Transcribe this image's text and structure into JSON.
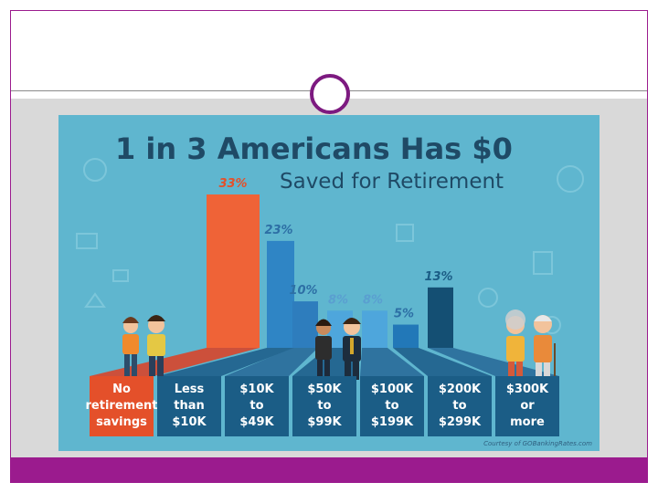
{
  "infographic": {
    "headline": "1 in 3 Americans Has $0",
    "subhead": "Saved for Retirement",
    "credit": "Courtesy of GOBankingRates.com"
  },
  "chart_data": {
    "type": "bar",
    "title": "1 in 3 Americans Has $0",
    "subtitle": "Saved for Retirement",
    "categories": [
      "No retirement savings",
      "Less than $10K",
      "$10K to $49K",
      "$50K to $99K",
      "$100K to $199K",
      "$200K to $299K",
      "$300K or more"
    ],
    "values": [
      33,
      23,
      10,
      8,
      8,
      5,
      13
    ],
    "value_labels": [
      "33%",
      "23%",
      "10%",
      "8%",
      "8%",
      "5%",
      "13%"
    ],
    "category_lines": [
      [
        "No",
        "retirement",
        "savings"
      ],
      [
        "Less",
        "than",
        "$10K"
      ],
      [
        "$10K",
        "to",
        "$49K"
      ],
      [
        "$50K",
        "to",
        "$99K"
      ],
      [
        "$100K",
        "to",
        "$199K"
      ],
      [
        "$200K",
        "to",
        "$299K"
      ],
      [
        "$300K",
        "or",
        "more"
      ]
    ],
    "bar_colors": [
      "#ef6337",
      "#2f85c5",
      "#2e7dbd",
      "#4ea6dc",
      "#4ea6dc",
      "#2278b8",
      "#144f73"
    ],
    "label_box_colors": [
      "#e4502a",
      "#1b5d86",
      "#1b5d86",
      "#1b5d86",
      "#1b5d86",
      "#1b5d86",
      "#1b5d86"
    ],
    "value_label_colors": [
      "#e4502a",
      "#2d6fa5",
      "#2d6fa5",
      "#5a9fd0",
      "#5a9fd0",
      "#2d6fa5",
      "#1b5d86"
    ],
    "background": "#5fb6cf",
    "ylim": [
      0,
      33
    ]
  }
}
